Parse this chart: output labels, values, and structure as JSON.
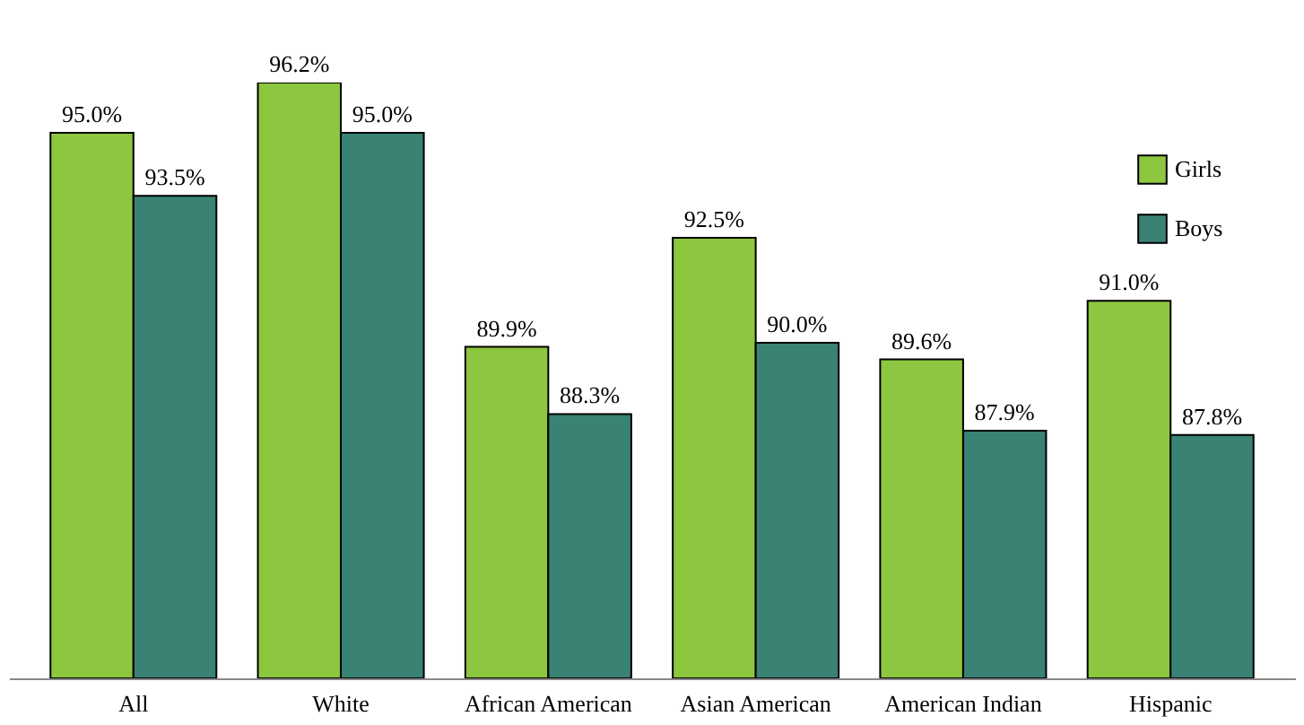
{
  "chart_data": {
    "type": "bar",
    "categories": [
      "All",
      "White",
      "African American",
      "Asian American",
      "American Indian",
      "Hispanic"
    ],
    "series": [
      {
        "name": "Girls",
        "color": "#8dc63f",
        "values": [
          95.0,
          96.2,
          89.9,
          92.5,
          89.6,
          91.0
        ],
        "value_labels": [
          "95.0%",
          "96.2%",
          "89.9%",
          "92.5%",
          "89.6%",
          "91.0%"
        ]
      },
      {
        "name": "Boys",
        "color": "#3a8274",
        "values": [
          93.5,
          95.0,
          88.3,
          90.0,
          87.9,
          87.8
        ],
        "value_labels": [
          "93.5%",
          "95.0%",
          "88.3%",
          "90.0%",
          "87.9%",
          "87.8%"
        ]
      }
    ],
    "ylim": [
      82,
      96.2
    ],
    "legend": "top right",
    "grid": false,
    "tick_labels": "x"
  }
}
